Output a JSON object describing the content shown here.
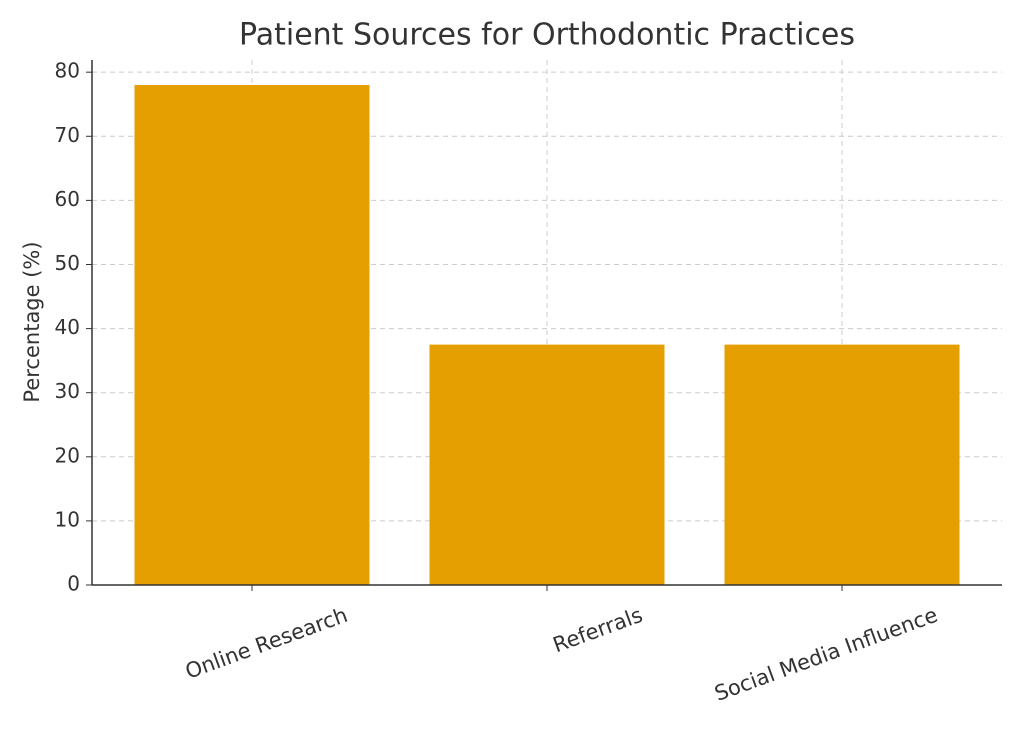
{
  "chart_data": {
    "type": "bar",
    "title": "Patient Sources for Orthodontic Practices",
    "ylabel": "Percentage (%)",
    "categories": [
      "Online Research",
      "Referrals",
      "Social Media Influence"
    ],
    "values": [
      78,
      37.5,
      37.5
    ],
    "color": "#e69f00",
    "ylim": [
      0,
      81.9
    ],
    "yticks": [
      0,
      10,
      20,
      30,
      40,
      50,
      60,
      70,
      80
    ],
    "grid": true
  }
}
